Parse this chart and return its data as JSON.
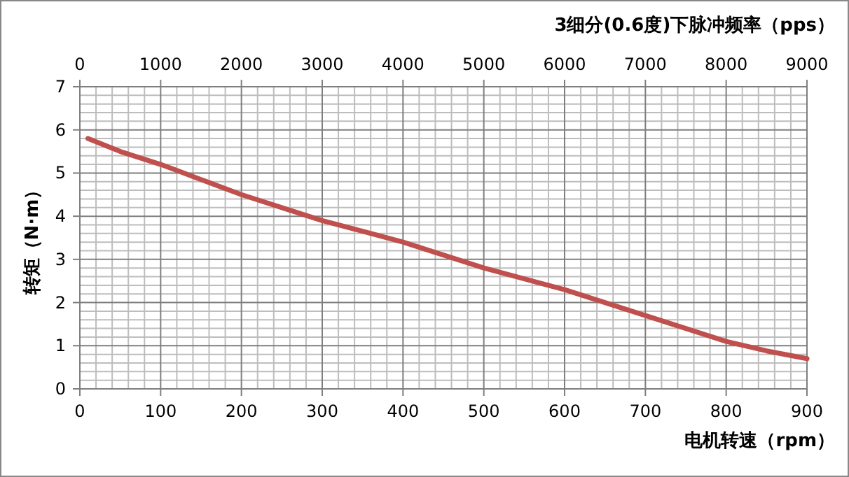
{
  "chart_data": {
    "type": "line",
    "xlabel": "电机转速（rpm）",
    "ylabel": "转矩（N·m）",
    "x2label": "3细分(0.6度)下脉冲频率（pps）",
    "series": [
      {
        "color": "#c0504d",
        "x": [
          10,
          50,
          100,
          150,
          200,
          250,
          300,
          350,
          400,
          450,
          500,
          550,
          600,
          650,
          700,
          750,
          800,
          850,
          900
        ],
        "values": [
          5.8,
          5.5,
          5.2,
          4.85,
          4.5,
          4.2,
          3.9,
          3.65,
          3.4,
          3.1,
          2.8,
          2.55,
          2.3,
          2.0,
          1.7,
          1.4,
          1.1,
          0.88,
          0.7
        ]
      }
    ],
    "xlim": [
      0,
      900
    ],
    "xticks": [
      0,
      100,
      200,
      300,
      400,
      500,
      600,
      700,
      800,
      900
    ],
    "x2lim": [
      0,
      9000
    ],
    "x2ticks": [
      0,
      1000,
      2000,
      3000,
      4000,
      5000,
      6000,
      7000,
      8000,
      9000
    ],
    "ylim": [
      0,
      7
    ],
    "yticks": [
      0,
      1,
      2,
      3,
      4,
      5,
      6,
      7
    ],
    "grid": true,
    "marker": "none",
    "line_style": "solid"
  }
}
